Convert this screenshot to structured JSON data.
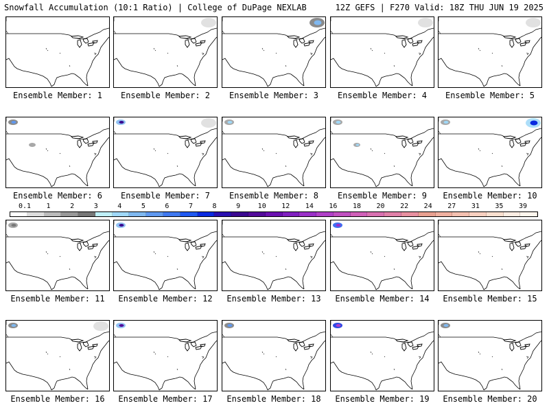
{
  "header": {
    "left": "Snowfall Accumulation (10:1 Ratio) | College of DuPage NEXLAB",
    "right": "12Z GEFS | F270 Valid: 18Z THU JUN 19 2025"
  },
  "panels": [
    {
      "label": "Ensemble Member: 1",
      "snow": []
    },
    {
      "label": "Ensemble Member: 2",
      "snow": [
        {
          "region": "northeast-canada",
          "level": 0.1
        }
      ]
    },
    {
      "label": "Ensemble Member: 3",
      "snow": [
        {
          "region": "northeast-canada",
          "level": 4
        }
      ]
    },
    {
      "label": "Ensemble Member: 4",
      "snow": [
        {
          "region": "northeast-canada",
          "level": 0.1
        }
      ]
    },
    {
      "label": "Ensemble Member: 5",
      "snow": [
        {
          "region": "northeast-canada",
          "level": 0.1
        }
      ]
    },
    {
      "label": "Ensemble Member: 6",
      "snow": [
        {
          "region": "pacific-northwest",
          "level": 5
        },
        {
          "region": "central-rockies",
          "level": 1
        }
      ]
    },
    {
      "label": "Ensemble Member: 7",
      "snow": [
        {
          "region": "pacific-northwest",
          "level": 8
        },
        {
          "region": "northeast-canada",
          "level": 0.1
        }
      ]
    },
    {
      "label": "Ensemble Member: 8",
      "snow": [
        {
          "region": "pacific-northwest",
          "level": 3
        }
      ]
    },
    {
      "label": "Ensemble Member: 9",
      "snow": [
        {
          "region": "pacific-northwest",
          "level": 3
        },
        {
          "region": "central-rockies",
          "level": 3
        }
      ]
    },
    {
      "label": "Ensemble Member: 10",
      "snow": [
        {
          "region": "pacific-northwest",
          "level": 3
        },
        {
          "region": "northeast-canada",
          "level": 7
        }
      ]
    },
    {
      "label": "Ensemble Member: 11",
      "snow": [
        {
          "region": "pacific-northwest",
          "level": 2
        }
      ]
    },
    {
      "label": "Ensemble Member: 12",
      "snow": [
        {
          "region": "pacific-northwest",
          "level": 8
        }
      ]
    },
    {
      "label": "Ensemble Member: 13",
      "snow": []
    },
    {
      "label": "Ensemble Member: 14",
      "snow": [
        {
          "region": "pacific-northwest",
          "level": 12
        }
      ]
    },
    {
      "label": "Ensemble Member: 15",
      "snow": []
    },
    {
      "label": "Ensemble Member: 16",
      "snow": [
        {
          "region": "pacific-northwest",
          "level": 4
        },
        {
          "region": "northeast-canada",
          "level": 0.1
        }
      ]
    },
    {
      "label": "Ensemble Member: 17",
      "snow": [
        {
          "region": "pacific-northwest",
          "level": 9
        }
      ]
    },
    {
      "label": "Ensemble Member: 18",
      "snow": [
        {
          "region": "pacific-northwest",
          "level": 5
        }
      ]
    },
    {
      "label": "Ensemble Member: 19",
      "snow": [
        {
          "region": "pacific-northwest",
          "level": 14
        }
      ]
    },
    {
      "label": "Ensemble Member: 20",
      "snow": [
        {
          "region": "pacific-northwest",
          "level": 4
        }
      ]
    }
  ],
  "colorbar": {
    "ticks": [
      "0.1",
      "1",
      "2",
      "3",
      "4",
      "5",
      "6",
      "7",
      "8",
      "9",
      "10",
      "12",
      "14",
      "16",
      "18",
      "20",
      "22",
      "24",
      "27",
      "31",
      "35",
      "39"
    ],
    "colors": [
      "#ffffff",
      "#dddddd",
      "#bbbbbb",
      "#999999",
      "#777777",
      "#bff0f8",
      "#9fd8f8",
      "#7fb8f0",
      "#5f98f0",
      "#3f78f0",
      "#1f58f0",
      "#0a2ae0",
      "#2a10b0",
      "#3a0890",
      "#520a9a",
      "#6a10b0",
      "#8020c0",
      "#9a30c8",
      "#b040c8",
      "#c050c0",
      "#d060b8",
      "#d870b0",
      "#e080a8",
      "#e890a0",
      "#e8a090",
      "#f0b0a0",
      "#f4c0b0",
      "#f8d0c0",
      "#fbe0d0",
      "#fdeee4",
      "#fff6ee"
    ]
  }
}
